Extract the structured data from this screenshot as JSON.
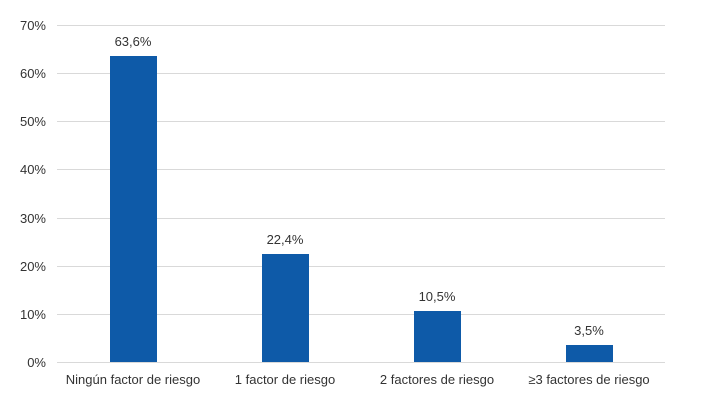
{
  "chart_data": {
    "type": "bar",
    "title": "",
    "xlabel": "",
    "ylabel": "",
    "categories": [
      "Ningún factor de riesgo",
      "1 factor de riesgo",
      "2 factores de riesgo",
      "≥3 factores de riesgo"
    ],
    "values": [
      63.6,
      22.4,
      10.5,
      3.5
    ],
    "value_labels": [
      "63,6%",
      "22,4%",
      "10,5%",
      "3,5%"
    ],
    "ylim": [
      0,
      70
    ],
    "yticks": [
      {
        "value": 0,
        "label": "0%"
      },
      {
        "value": 10,
        "label": "10%"
      },
      {
        "value": 20,
        "label": "20%"
      },
      {
        "value": 30,
        "label": "30%"
      },
      {
        "value": 40,
        "label": "40%"
      },
      {
        "value": 50,
        "label": "50%"
      },
      {
        "value": 60,
        "label": "60%"
      },
      {
        "value": 70,
        "label": "70%"
      }
    ],
    "grid": "horizontal",
    "legend": "none",
    "colors": {
      "bar": "#0E5AA8",
      "gridline": "#D9D9D9",
      "text": "#333333",
      "background": "#FFFFFF"
    }
  }
}
